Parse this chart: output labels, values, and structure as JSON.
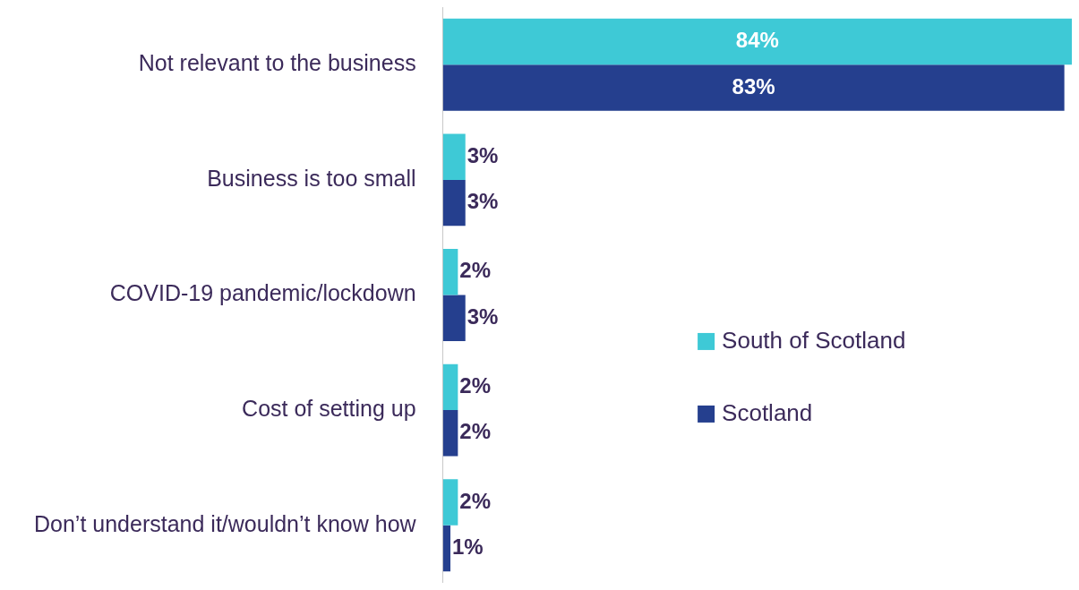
{
  "chart_data": {
    "type": "bar",
    "orientation": "horizontal",
    "categories": [
      "Not relevant to the business",
      "Business is too small",
      "COVID-19 pandemic/lockdown",
      "Cost of setting up",
      "Don’t understand it/wouldn’t know how"
    ],
    "series": [
      {
        "name": "South of Scotland",
        "color": "#3ec9d6",
        "values": [
          84,
          3,
          2,
          2,
          2
        ],
        "value_labels": [
          "84%",
          "3%",
          "2%",
          "2%",
          "2%"
        ]
      },
      {
        "name": "Scotland",
        "color": "#253f8e",
        "values": [
          83,
          3,
          3,
          2,
          1
        ],
        "value_labels": [
          "83%",
          "3%",
          "3%",
          "2%",
          "1%"
        ]
      }
    ],
    "grid": false,
    "legend": "right"
  }
}
